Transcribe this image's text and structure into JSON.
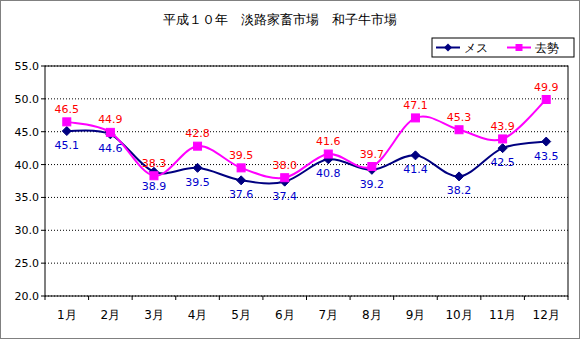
{
  "chart_data": {
    "type": "line",
    "title": "平成１０年　淡路家畜市場　和子牛市場",
    "categories": [
      "1月",
      "2月",
      "3月",
      "4月",
      "5月",
      "6月",
      "7月",
      "8月",
      "9月",
      "10月",
      "11月",
      "12月"
    ],
    "series": [
      {
        "name": "メス",
        "color": "#000080",
        "marker": "diamond",
        "line_style": "smooth",
        "values": [
          45.1,
          44.6,
          38.9,
          39.5,
          37.6,
          37.4,
          40.8,
          39.2,
          41.4,
          38.2,
          42.5,
          43.5
        ],
        "value_labels": [
          "45.1",
          "44.6",
          "38.9",
          "39.5",
          "37.6",
          "37.4",
          "40.8",
          "39.2",
          "41.4",
          "38.2",
          "42.5",
          "43.5"
        ]
      },
      {
        "name": "去勢",
        "color": "#ff00ff",
        "marker": "square",
        "line_style": "smooth",
        "values": [
          46.5,
          44.9,
          38.3,
          42.8,
          39.5,
          38.0,
          41.6,
          39.7,
          47.1,
          45.3,
          43.9,
          49.9
        ],
        "value_labels": [
          "46.5",
          "44.9",
          "38.3",
          "42.8",
          "39.5",
          "38.0",
          "41.6",
          "39.7",
          "47.1",
          "45.3",
          "43.9",
          "49.9"
        ]
      }
    ],
    "ylim": [
      20,
      55
    ],
    "yticks": [
      {
        "value": 20,
        "label": "20.0"
      },
      {
        "value": 25,
        "label": "25.0"
      },
      {
        "value": 30,
        "label": "30.0"
      },
      {
        "value": 35,
        "label": "35.0"
      },
      {
        "value": 40,
        "label": "40.0"
      },
      {
        "value": 45,
        "label": "45.0"
      },
      {
        "value": 50,
        "label": "50.0"
      },
      {
        "value": 55,
        "label": "55.0"
      }
    ],
    "grid": true,
    "legend": "top-right",
    "data_labels": true
  }
}
